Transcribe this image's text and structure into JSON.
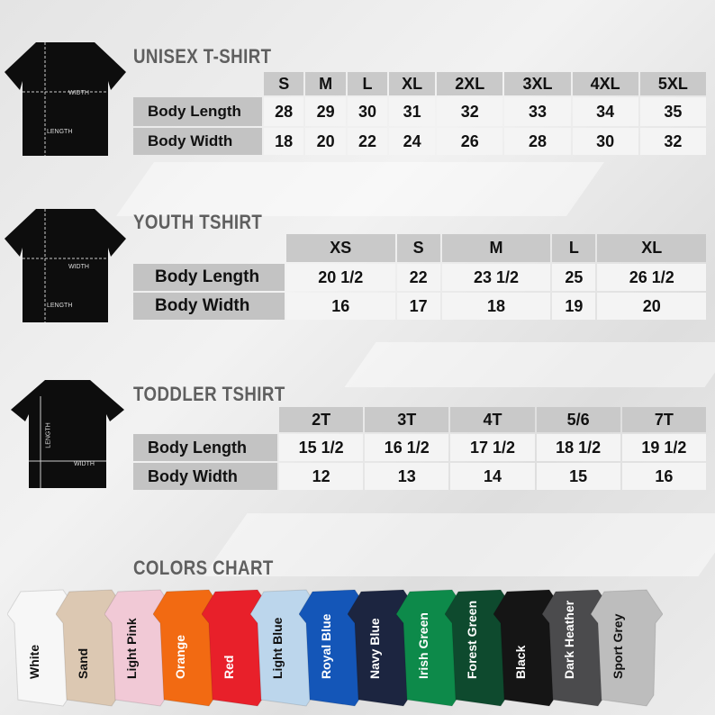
{
  "unisex": {
    "title": "UNISEX T-SHIRT",
    "diagram": {
      "width": "WIDTH",
      "length": "LENGTH"
    },
    "sizes": [
      "S",
      "M",
      "L",
      "XL",
      "2XL",
      "3XL",
      "4XL",
      "5XL"
    ],
    "rows": [
      {
        "label": "Body Length",
        "values": [
          "28",
          "29",
          "30",
          "31",
          "32",
          "33",
          "34",
          "35"
        ]
      },
      {
        "label": "Body Width",
        "values": [
          "18",
          "20",
          "22",
          "24",
          "26",
          "28",
          "30",
          "32"
        ]
      }
    ]
  },
  "youth": {
    "title": "YOUTH TSHIRT",
    "diagram": {
      "width": "WIDTH",
      "length": "LENGTH"
    },
    "sizes": [
      "XS",
      "S",
      "M",
      "L",
      "XL"
    ],
    "rows": [
      {
        "label": "Body Length",
        "values": [
          "20 1/2",
          "22",
          "23 1/2",
          "25",
          "26 1/2"
        ]
      },
      {
        "label": "Body Width",
        "values": [
          "16",
          "17",
          "18",
          "19",
          "20"
        ]
      }
    ]
  },
  "toddler": {
    "title": "TODDLER TSHIRT",
    "diagram": {
      "width": "WIDTH",
      "length": "LENGTH"
    },
    "sizes": [
      "2T",
      "3T",
      "4T",
      "5/6",
      "7T"
    ],
    "rows": [
      {
        "label": "Body Length",
        "values": [
          "15 1/2",
          "16 1/2",
          "17 1/2",
          "18 1/2",
          "19 1/2"
        ]
      },
      {
        "label": "Body Width",
        "values": [
          "12",
          "13",
          "14",
          "15",
          "16"
        ]
      }
    ]
  },
  "colors": {
    "title": "COLORS CHART",
    "items": [
      {
        "name": "White",
        "color": "#f7f7f7",
        "text": "#111"
      },
      {
        "name": "Sand",
        "color": "#dcc8b2",
        "text": "#111"
      },
      {
        "name": "Light Pink",
        "color": "#f1c9d6",
        "text": "#111"
      },
      {
        "name": "Orange",
        "color": "#f26a12",
        "text": "#fff"
      },
      {
        "name": "Red",
        "color": "#e8202a",
        "text": "#fff"
      },
      {
        "name": "Light Blue",
        "color": "#bcd6ec",
        "text": "#111"
      },
      {
        "name": "Royal Blue",
        "color": "#1456b8",
        "text": "#fff"
      },
      {
        "name": "Navy Blue",
        "color": "#1c2540",
        "text": "#fff"
      },
      {
        "name": "Irish Green",
        "color": "#0d8a4a",
        "text": "#fff"
      },
      {
        "name": "Forest Green",
        "color": "#0e4a2e",
        "text": "#fff"
      },
      {
        "name": "Black",
        "color": "#151515",
        "text": "#fff"
      },
      {
        "name": "Dark Heather",
        "color": "#4b4b4d",
        "text": "#fff"
      },
      {
        "name": "Sport Grey",
        "color": "#bdbdbd",
        "text": "#111"
      }
    ]
  }
}
